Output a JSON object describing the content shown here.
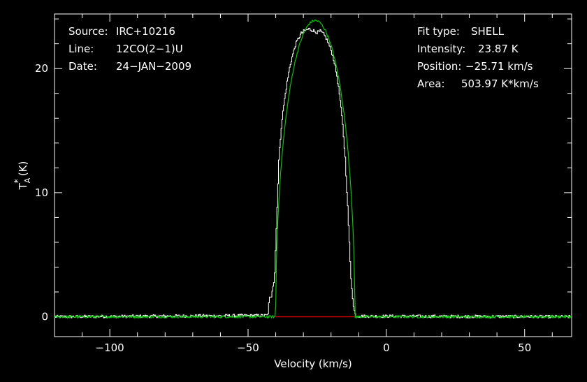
{
  "colors": {
    "background": "#000000",
    "axes": "#ffffff",
    "observed": "#ffffff",
    "fit": "#00c800",
    "baseline": "#c80000"
  },
  "info_left": [
    {
      "key": "Source:",
      "value": "IRC+10216"
    },
    {
      "key": "Line:",
      "value": "12CO(2-1)U"
    },
    {
      "key": "Date:",
      "value": "24-JAN-2009"
    }
  ],
  "info_right": [
    {
      "key": "Fit type:",
      "value": "SHELL"
    },
    {
      "key": "Intensity:",
      "value": "23.87 K"
    },
    {
      "key": "Position:",
      "value": "-25.71 km/s"
    },
    {
      "key": "Area:",
      "value": "503.97 K*km/s"
    }
  ],
  "chart_data": {
    "type": "line",
    "xlabel": "Velocity (km/s)",
    "ylabel_main": "T",
    "ylabel_sup": "*",
    "ylabel_sub": "A",
    "ylabel_unit": "(K)",
    "xlim": [
      -120,
      67
    ],
    "ylim": [
      -1.6,
      24.4
    ],
    "xticks_major": [
      -100,
      -50,
      0,
      50
    ],
    "xtick_labels": [
      "-100",
      "-50",
      "0",
      "50"
    ],
    "yticks_major": [
      0,
      10,
      20
    ],
    "ytick_labels": [
      "0",
      "10",
      "20"
    ],
    "grid": false,
    "series": [
      {
        "role": "fit",
        "model": "shell",
        "peak": 23.87,
        "center": -25.71,
        "half_width": 14.3,
        "horn_ratio": 0.0,
        "baseline": 0
      },
      {
        "role": "observed",
        "x": [
          -120,
          -43,
          -42.4,
          -41.8,
          -41.2,
          -40.6,
          -40,
          -39,
          -38,
          -37,
          -36,
          -35,
          -34,
          -33,
          -32,
          -31,
          -30,
          -29,
          -28,
          -27,
          -26,
          -25,
          -24,
          -23,
          -22,
          -21,
          -20,
          -19,
          -18,
          -17,
          -16,
          -15,
          -14,
          -13,
          -12,
          -11.4,
          -10.8,
          67
        ],
        "y": [
          0,
          0.1,
          1.5,
          1.5,
          2.5,
          3.0,
          6.5,
          12.6,
          15.6,
          17.4,
          18.9,
          20.2,
          21.1,
          21.9,
          22.4,
          22.8,
          23.0,
          23.1,
          23.2,
          23.1,
          23.0,
          22.9,
          23.0,
          22.8,
          22.5,
          22.0,
          21.4,
          20.6,
          19.4,
          17.8,
          15.7,
          12.8,
          8.4,
          3.4,
          0.8,
          0.2,
          0.05,
          0
        ]
      },
      {
        "role": "baseline-segment",
        "x": [
          -40,
          -11.4
        ],
        "y": [
          0,
          0
        ]
      }
    ]
  }
}
